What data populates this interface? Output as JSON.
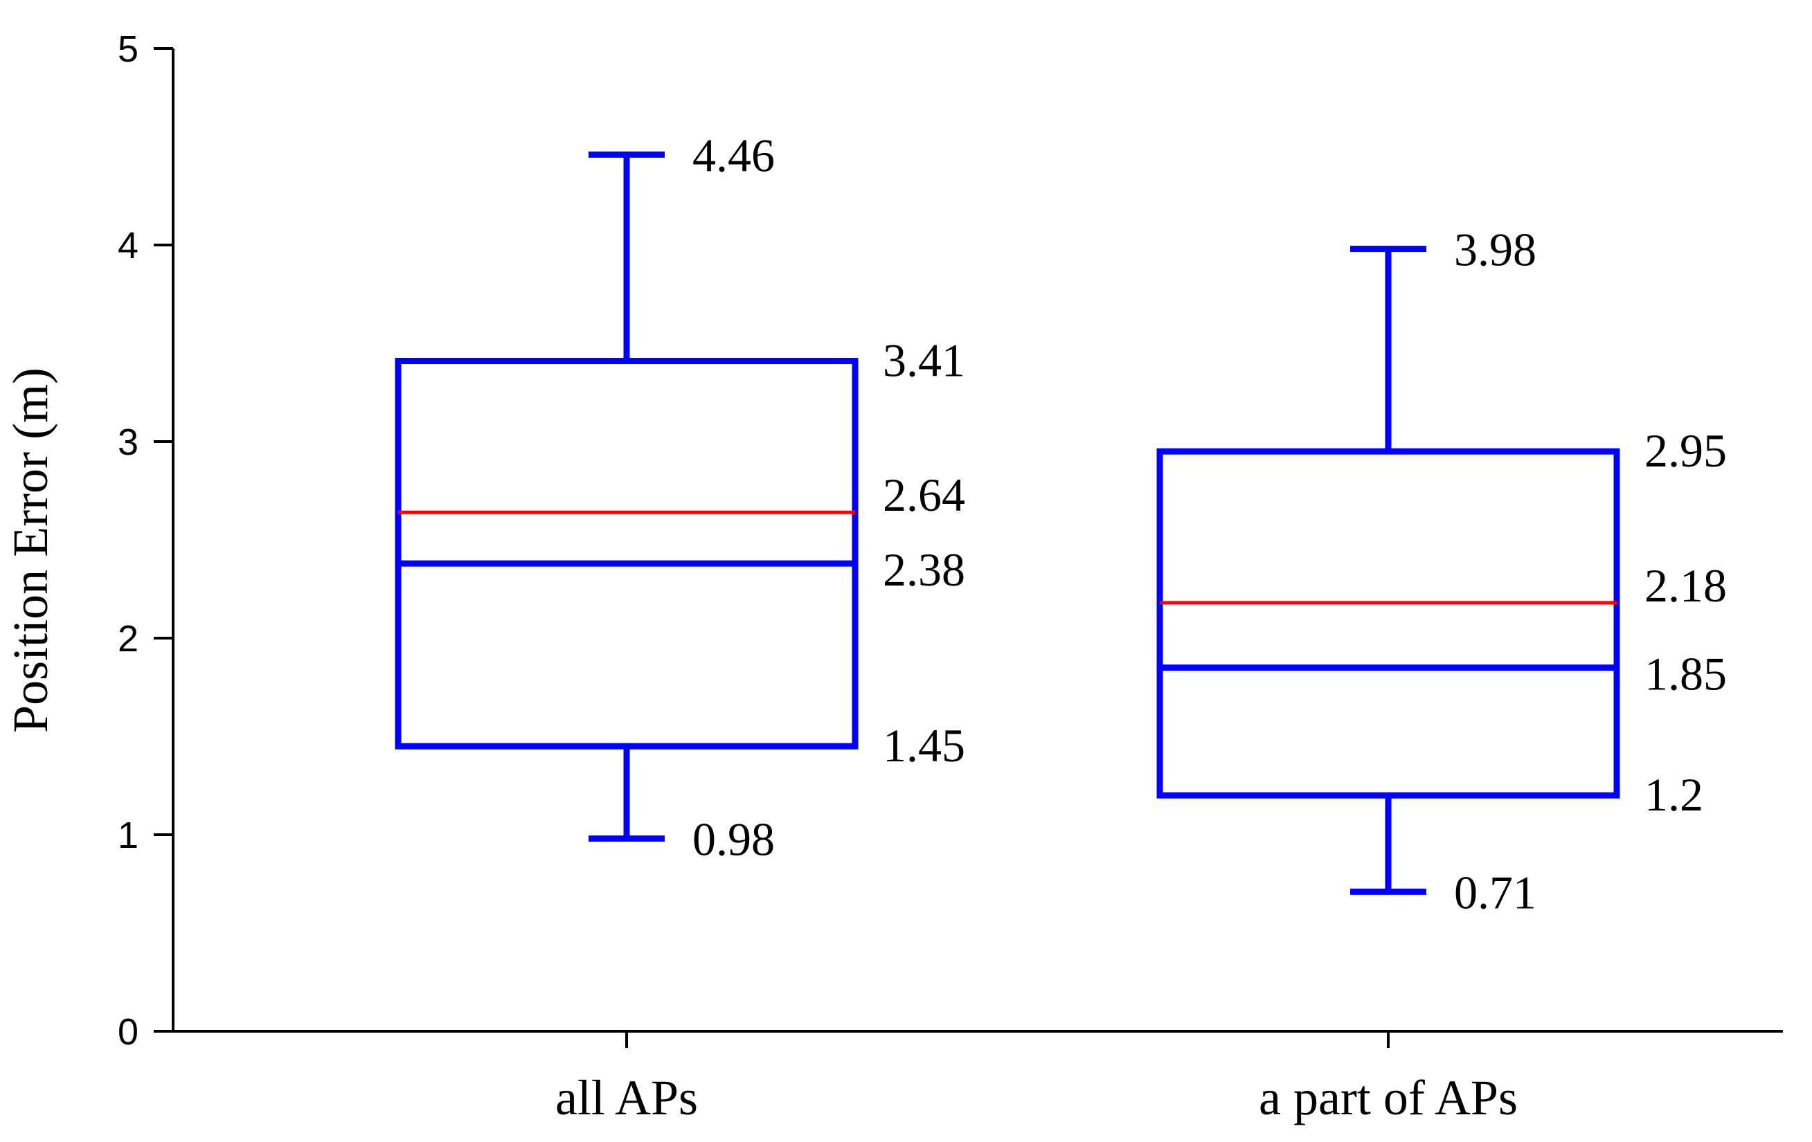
{
  "chart_data": {
    "type": "box",
    "title": "",
    "xlabel": "",
    "ylabel": "Position Error (m)",
    "ylim": [
      0,
      5
    ],
    "yticks": [
      0,
      1,
      2,
      3,
      4,
      5
    ],
    "grid": false,
    "legend": "none",
    "categories": [
      "all APs",
      "a part of APs"
    ],
    "boxes": [
      {
        "category": "all APs",
        "whisker_high": 4.46,
        "q3": 3.41,
        "mean": 2.64,
        "median": 2.38,
        "q1": 1.45,
        "whisker_low": 0.98,
        "labels": {
          "whisker_high": "4.46",
          "q3": "3.41",
          "mean": "2.64",
          "median": "2.38",
          "q1": "1.45",
          "whisker_low": "0.98"
        }
      },
      {
        "category": "a part of APs",
        "whisker_high": 3.98,
        "q3": 2.95,
        "mean": 2.18,
        "median": 1.85,
        "q1": 1.2,
        "whisker_low": 0.71,
        "labels": {
          "whisker_high": "3.98",
          "q3": "2.95",
          "mean": "2.18",
          "median": "1.85",
          "q1": "1.2",
          "whisker_low": "0.71"
        }
      }
    ],
    "colors": {
      "box": "#0000ff",
      "mean_line": "#ff0000",
      "axis": "#000000"
    }
  }
}
